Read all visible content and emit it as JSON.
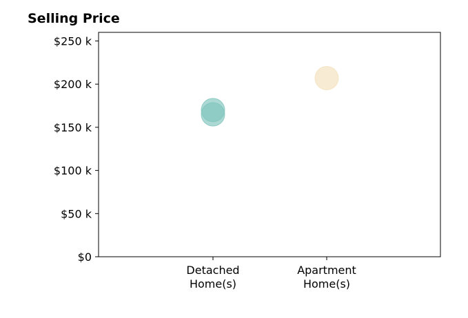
{
  "chart_data": {
    "type": "scatter",
    "title": "Selling Price",
    "categories": [
      "Detached\nHome(s)",
      "Apartment\nHome(s)"
    ],
    "yticks": [
      "$0",
      "$50 k",
      "$100 k",
      "$150 k",
      "$200 k",
      "$250 k"
    ],
    "ytick_values": [
      0,
      50000,
      100000,
      150000,
      200000,
      250000
    ],
    "ylim": [
      0,
      260000
    ],
    "grid": false,
    "points": [
      {
        "category_index": 0,
        "y": 170000,
        "color": "#7fc4bd"
      },
      {
        "category_index": 0,
        "y": 165000,
        "color": "#7fc4bd"
      },
      {
        "category_index": 1,
        "y": 207000,
        "color": "#f3e1bb"
      }
    ]
  }
}
